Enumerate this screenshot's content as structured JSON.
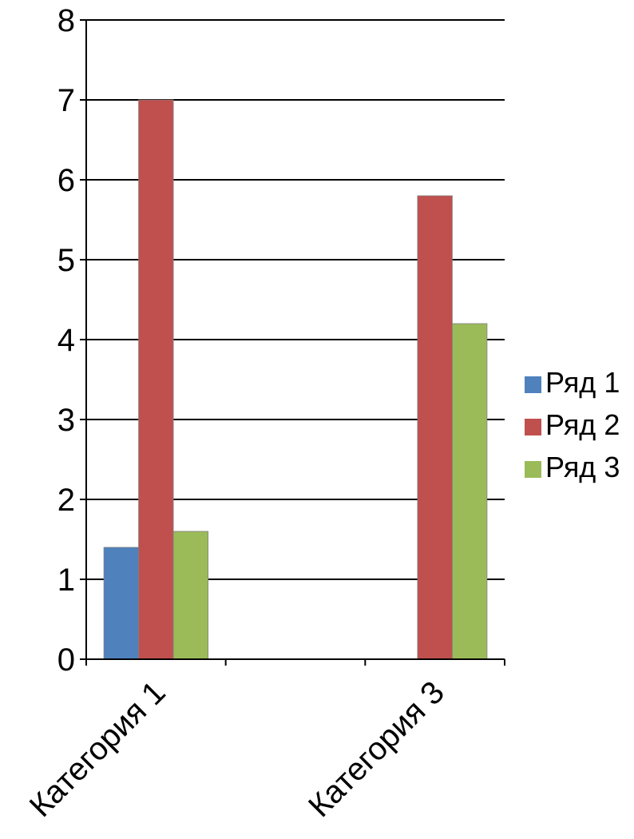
{
  "chart_data": {
    "type": "bar",
    "categories": [
      "Категория 1",
      "",
      "Категория 3"
    ],
    "series": [
      {
        "name": "Ряд 1",
        "values": [
          1.4,
          0,
          0
        ],
        "color": "#4f81bd"
      },
      {
        "name": "Ряд 2",
        "values": [
          7,
          0,
          5.8
        ],
        "color": "#c0504d"
      },
      {
        "name": "Ряд 3",
        "values": [
          1.6,
          0,
          4.2
        ],
        "color": "#9bbb59"
      }
    ],
    "yticks": [
      "0",
      "1",
      "2",
      "3",
      "4",
      "5",
      "6",
      "7",
      "8"
    ],
    "ylim": [
      0,
      8
    ],
    "grid": true,
    "legend": "right"
  }
}
